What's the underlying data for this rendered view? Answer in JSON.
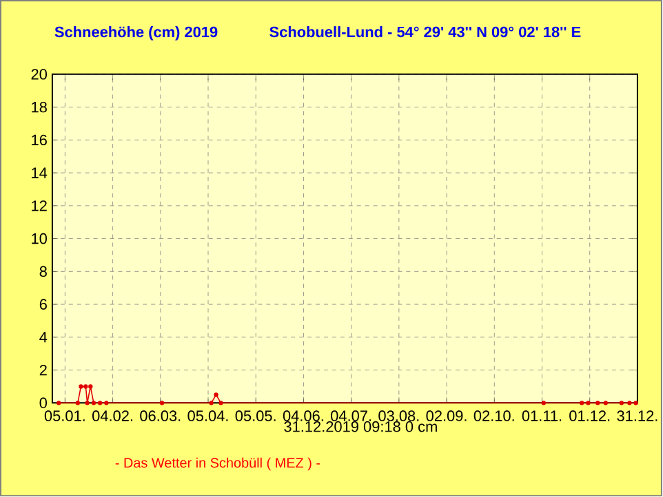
{
  "chart_data": {
    "type": "line",
    "title": "Schneehöhe (cm)  2019",
    "subtitle": "Schobuell-Lund - 54° 29' 43''  N  09° 02' 18'' E",
    "series": [
      {
        "color": "#e00000",
        "x": [
          "2019-01-01",
          "2019-01-13",
          "2019-01-15",
          "2019-01-18",
          "2019-01-19",
          "2019-01-21",
          "2019-01-23",
          "2019-01-27",
          "2019-01-31",
          "2019-03-07",
          "2019-04-07",
          "2019-04-10",
          "2019-04-13",
          "2019-11-02",
          "2019-11-26",
          "2019-11-30",
          "2019-12-06",
          "2019-12-11",
          "2019-12-21",
          "2019-12-26",
          "2019-12-30"
        ],
        "values": [
          0,
          0,
          1,
          1,
          0,
          1,
          0,
          0,
          0,
          0,
          0,
          0.5,
          0,
          0,
          0,
          0,
          0,
          0,
          0,
          0,
          0
        ]
      }
    ],
    "marker": "circle",
    "grid": true,
    "xlim": [
      "2018-12-28",
      "2019-12-31"
    ],
    "ylim": [
      0,
      20
    ],
    "xticks": [
      {
        "value": "2019-01-05",
        "label": "05.01."
      },
      {
        "value": "2019-02-04",
        "label": "04.02."
      },
      {
        "value": "2019-03-06",
        "label": "06.03."
      },
      {
        "value": "2019-04-05",
        "label": "05.04."
      },
      {
        "value": "2019-05-05",
        "label": "05.05."
      },
      {
        "value": "2019-06-04",
        "label": "04.06."
      },
      {
        "value": "2019-07-04",
        "label": "04.07."
      },
      {
        "value": "2019-08-03",
        "label": "03.08."
      },
      {
        "value": "2019-09-02",
        "label": "02.09."
      },
      {
        "value": "2019-10-02",
        "label": "02.10."
      },
      {
        "value": "2019-11-01",
        "label": "01.11."
      },
      {
        "value": "2019-12-01",
        "label": "01.12."
      },
      {
        "value": "2019-12-31",
        "label": "31.12."
      }
    ],
    "yticks": [
      0,
      2,
      4,
      6,
      8,
      10,
      12,
      14,
      16,
      18,
      20
    ],
    "annotations": [
      "31.12.2019 09:18   0 cm",
      "-   Das Wetter in Schobüll ( MEZ )   -"
    ]
  }
}
